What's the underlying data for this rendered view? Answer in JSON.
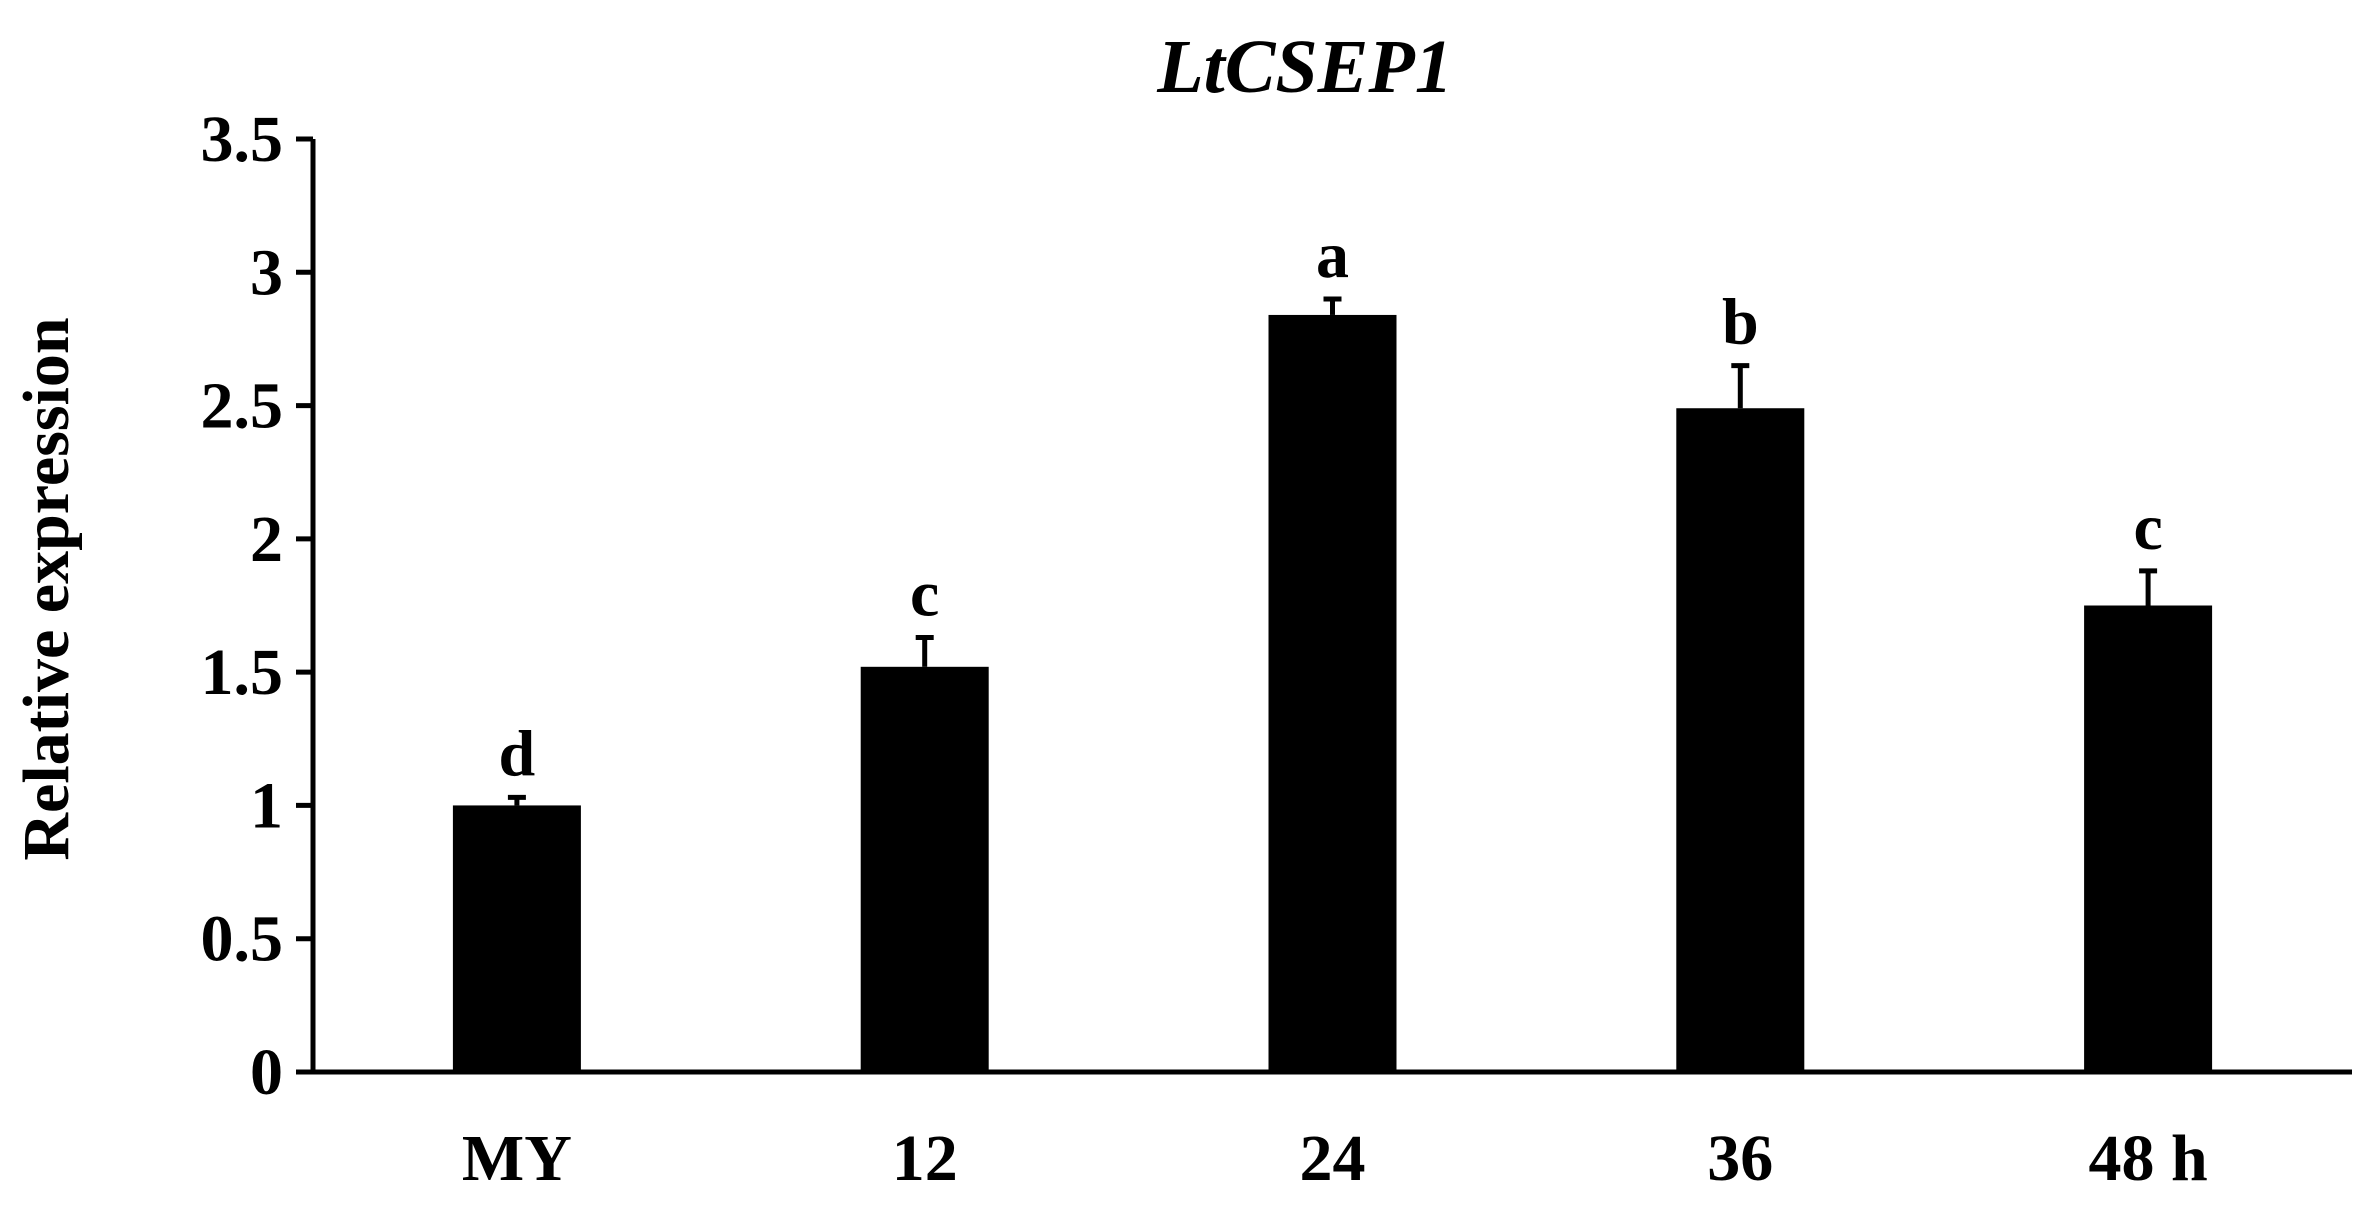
{
  "chart_data": {
    "type": "bar",
    "title": "LtCSEP1",
    "xlabel": "",
    "ylabel": "Relative expression",
    "categories": [
      "MY",
      "12",
      "24",
      "36",
      "48 h"
    ],
    "series": [
      {
        "values": [
          1.0,
          1.52,
          2.84,
          2.49,
          1.75
        ],
        "errors": [
          0.03,
          0.11,
          0.06,
          0.16,
          0.13
        ],
        "significance": [
          "d",
          "c",
          "a",
          "b",
          "c"
        ],
        "color": "#000000"
      }
    ],
    "ylim": [
      0,
      3.5
    ],
    "yticks": [
      "0",
      "0.5",
      "1",
      "1.5",
      "2",
      "2.5",
      "3",
      "3.5"
    ],
    "grid": false,
    "legend": "none"
  }
}
